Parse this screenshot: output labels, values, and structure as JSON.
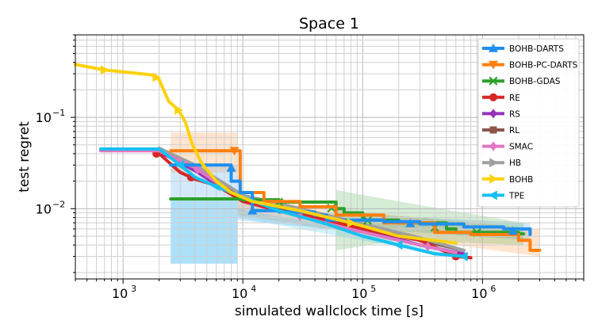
{
  "chart_data": {
    "type": "line",
    "title": "Space 1",
    "xlabel": "simulated wallclock time [s]",
    "ylabel": "test regret",
    "xscale": "log",
    "yscale": "log",
    "xlim": [
      400,
      7000000
    ],
    "ylim": [
      0.0017,
      0.8
    ],
    "grid": true,
    "legend_position": "top-right",
    "x_ticks": [
      {
        "value": 1000,
        "base": "10",
        "exp": "3"
      },
      {
        "value": 10000,
        "base": "10",
        "exp": "4"
      },
      {
        "value": 100000,
        "base": "10",
        "exp": "5"
      },
      {
        "value": 1000000,
        "base": "10",
        "exp": "6"
      }
    ],
    "y_ticks": [
      {
        "value": 0.01,
        "base": "10",
        "exp": "−2"
      },
      {
        "value": 0.1,
        "base": "10",
        "exp": "−1"
      }
    ],
    "series": [
      {
        "name": "BOHB-DARTS",
        "color": "#1f8ff0",
        "marker": "triangle-up",
        "x": [
          2500,
          8000,
          8000,
          9500,
          12000,
          20000,
          40000,
          50000,
          80000,
          150000,
          300000,
          700000,
          1500000,
          2500000
        ],
        "y": [
          0.03,
          0.028,
          0.02,
          0.015,
          0.0095,
          0.0092,
          0.0085,
          0.0075,
          0.0075,
          0.0072,
          0.0068,
          0.0063,
          0.006,
          0.0052
        ],
        "markers_x": [
          8000,
          12000,
          250000,
          1800000
        ],
        "band": {
          "x": [
            2500,
            9000,
            9000,
            50000,
            300000,
            2500000
          ],
          "lower": [
            0.0025,
            0.0025,
            0.0075,
            0.006,
            0.0055,
            0.0045
          ],
          "upper": [
            0.03,
            0.03,
            0.0125,
            0.009,
            0.008,
            0.007
          ]
        }
      },
      {
        "name": "BOHB-PC-DARTS",
        "color": "#ff7f0e",
        "marker": "triangle-down",
        "x": [
          2500,
          8500,
          9500,
          15000,
          30000,
          60000,
          150000,
          400000,
          800000,
          2000000,
          2500000,
          3000000
        ],
        "y": [
          0.043,
          0.043,
          0.015,
          0.012,
          0.0105,
          0.0085,
          0.007,
          0.0055,
          0.0052,
          0.0045,
          0.0035,
          0.0035
        ],
        "markers_x": [
          8500
        ],
        "band": {
          "x": [
            2500,
            9000,
            9000,
            50000,
            300000,
            3000000
          ],
          "lower": [
            0.025,
            0.025,
            0.0085,
            0.006,
            0.0045,
            0.003
          ],
          "upper": [
            0.068,
            0.068,
            0.014,
            0.01,
            0.008,
            0.006
          ]
        }
      },
      {
        "name": "BOHB-GDAS",
        "color": "#2ca02c",
        "marker": "x",
        "x": [
          2500,
          10000,
          20000,
          60000,
          70000,
          100000,
          200000,
          500000,
          600000,
          1000000,
          2000000,
          2200000
        ],
        "y": [
          0.0128,
          0.0125,
          0.0118,
          0.01,
          0.009,
          0.0075,
          0.007,
          0.006,
          0.0055,
          0.0055,
          0.0053,
          0.0053
        ],
        "markers_x": [
          20000,
          55000,
          110000,
          400000,
          900000
        ],
        "band": {
          "x": [
            2500,
            10000,
            60000,
            60000,
            200000,
            2200000
          ],
          "lower": [
            0.0128,
            0.0125,
            0.0115,
            0.0035,
            0.0045,
            0.004
          ],
          "upper": [
            0.0128,
            0.0125,
            0.0115,
            0.016,
            0.012,
            0.007
          ]
        }
      },
      {
        "name": "RE",
        "color": "#d62728",
        "marker": "circle",
        "x": [
          2000,
          3000,
          4000,
          6000,
          10000,
          20000,
          50000,
          100000,
          300000,
          600000,
          800000
        ],
        "y": [
          0.04,
          0.025,
          0.021,
          0.018,
          0.012,
          0.0095,
          0.0075,
          0.006,
          0.0045,
          0.003,
          0.0029
        ],
        "markers_x": [
          1900,
          3700,
          600000
        ],
        "band": null
      },
      {
        "name": "RS",
        "color": "#9632b8",
        "marker": "diamond",
        "x": [
          2000,
          4000,
          10000,
          30000,
          100000,
          300000,
          700000
        ],
        "y": [
          0.042,
          0.026,
          0.012,
          0.009,
          0.006,
          0.004,
          0.0032
        ],
        "markers_x": [],
        "band": null
      },
      {
        "name": "RL",
        "color": "#8c564b",
        "marker": "square",
        "x": [
          2000,
          4000,
          8000,
          15000,
          40000,
          100000,
          300000,
          700000
        ],
        "y": [
          0.045,
          0.028,
          0.016,
          0.011,
          0.008,
          0.0065,
          0.0045,
          0.0035
        ],
        "markers_x": [],
        "band": null
      },
      {
        "name": "SMAC",
        "color": "#e377c2",
        "marker": "diamond",
        "x": [
          650,
          2000,
          4000,
          8000,
          20000,
          60000,
          200000,
          600000
        ],
        "y": [
          0.043,
          0.043,
          0.028,
          0.015,
          0.0095,
          0.0065,
          0.0045,
          0.0033
        ],
        "markers_x": [
          4200,
          30000,
          350000
        ],
        "band": null
      },
      {
        "name": "HB",
        "color": "#a0a0a0",
        "marker": "triangle-right",
        "x": [
          2000,
          4000,
          10000,
          30000,
          100000,
          300000,
          700000
        ],
        "y": [
          0.046,
          0.03,
          0.014,
          0.01,
          0.0068,
          0.0048,
          0.0035
        ],
        "markers_x": [],
        "band": null
      },
      {
        "name": "BOHB",
        "color": "#fcd20c",
        "marker": "triangle-right",
        "x": [
          400,
          700,
          1800,
          2000,
          2400,
          2900,
          3300,
          3800,
          4500,
          6000,
          8000,
          12000,
          30000,
          80000,
          200000,
          600000
        ],
        "y": [
          0.38,
          0.33,
          0.29,
          0.26,
          0.15,
          0.12,
          0.09,
          0.05,
          0.032,
          0.02,
          0.015,
          0.012,
          0.0095,
          0.007,
          0.005,
          0.0042
        ],
        "markers_x": [
          700,
          1900,
          2900,
          80000
        ],
        "band": null
      },
      {
        "name": "TPE",
        "color": "#17c0f0",
        "marker": "triangle-left",
        "x": [
          650,
          2000,
          3000,
          4000,
          8000,
          20000,
          50000,
          100000,
          200000,
          400000,
          700000
        ],
        "y": [
          0.045,
          0.045,
          0.03,
          0.022,
          0.015,
          0.0095,
          0.0068,
          0.005,
          0.004,
          0.0032,
          0.003
        ],
        "markers_x": [
          3000,
          6000,
          200000,
          700000
        ],
        "band": {
          "x": [
            2500,
            9000,
            9000,
            700000
          ],
          "lower": [
            0.0025,
            0.0025,
            0.008,
            0.0028
          ],
          "upper": [
            0.013,
            0.013,
            0.01,
            0.0035
          ]
        }
      }
    ]
  }
}
